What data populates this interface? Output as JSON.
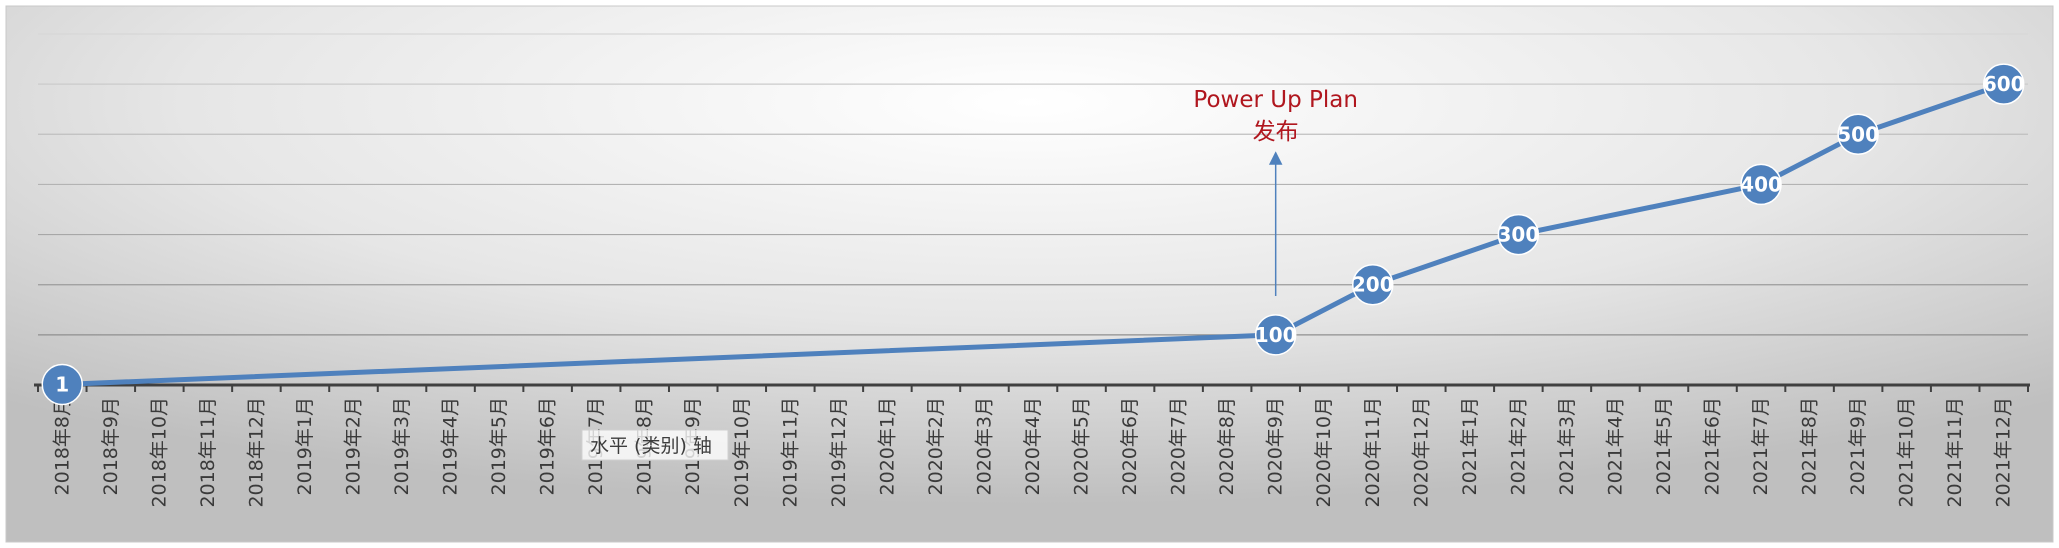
{
  "chart_data": {
    "type": "line",
    "categories": [
      "2018年8月",
      "2018年9月",
      "2018年10月",
      "2018年11月",
      "2018年12月",
      "2019年1月",
      "2019年2月",
      "2019年3月",
      "2019年4月",
      "2019年5月",
      "2019年6月",
      "2019年7月",
      "2019年8月",
      "2019年9月",
      "2019年10月",
      "2019年11月",
      "2019年12月",
      "2020年1月",
      "2020年2月",
      "2020年3月",
      "2020年4月",
      "2020年5月",
      "2020年6月",
      "2020年7月",
      "2020年8月",
      "2020年9月",
      "2020年10月",
      "2020年11月",
      "2020年12月",
      "2021年1月",
      "2021年2月",
      "2021年3月",
      "2021年4月",
      "2021年5月",
      "2021年6月",
      "2021年7月",
      "2021年8月",
      "2021年9月",
      "2021年10月",
      "2021年11月",
      "2021年12月"
    ],
    "series": [
      {
        "color": "#4f81bd",
        "points": [
          {
            "category": "2018年8月",
            "value": 1,
            "label": "1"
          },
          {
            "category": "2020年9月",
            "value": 100,
            "label": "100"
          },
          {
            "category": "2020年11月",
            "value": 200,
            "label": "200"
          },
          {
            "category": "2021年2月",
            "value": 300,
            "label": "300"
          },
          {
            "category": "2021年7月",
            "value": 400,
            "label": "400"
          },
          {
            "category": "2021年9月",
            "value": 500,
            "label": "500"
          },
          {
            "category": "2021年12月",
            "value": 600,
            "label": "600"
          }
        ]
      }
    ],
    "ylim": [
      0,
      700
    ],
    "gridlines": [
      100,
      200,
      300,
      400,
      500,
      600,
      700
    ],
    "grid": true,
    "legend": "none",
    "title": "",
    "xlabel": "",
    "ylabel": "",
    "annotation": {
      "lines": [
        "Power Up Plan",
        "发布"
      ],
      "category": "2020年9月",
      "color": "#b0161e"
    },
    "tooltip": {
      "text": "水平 (类别) 轴"
    }
  }
}
